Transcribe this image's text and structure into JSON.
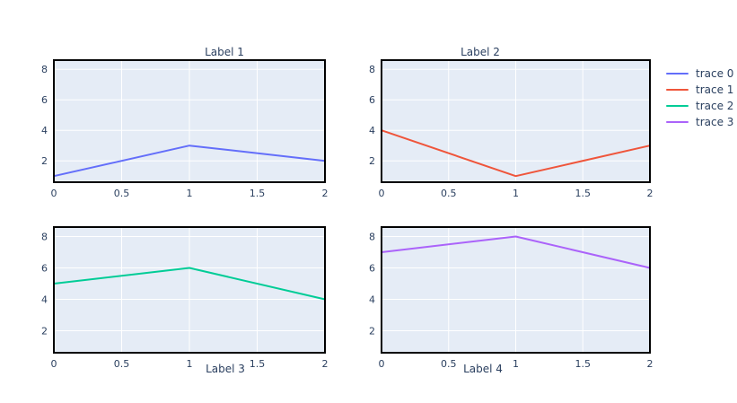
{
  "colors": {
    "background": "#ffffff",
    "plot_background": "#e5ecf6",
    "grid": "#ffffff",
    "axis_border": "#000000",
    "text": "#2a3f5f"
  },
  "legend": {
    "position": "right",
    "items": [
      {
        "label": "trace 0",
        "color": "#636efa"
      },
      {
        "label": "trace 1",
        "color": "#ef553b"
      },
      {
        "label": "trace 2",
        "color": "#00cc96"
      },
      {
        "label": "trace 3",
        "color": "#ab63fa"
      }
    ]
  },
  "chart_data": [
    {
      "type": "line",
      "name": "trace 0",
      "title": "Label 1",
      "title_position": "top",
      "color": "#636efa",
      "x": [
        0,
        1,
        2
      ],
      "y": [
        1,
        3,
        2
      ],
      "xlim": [
        0,
        2
      ],
      "ylim": [
        0.6,
        8.6
      ],
      "x_tick_values": [
        0,
        0.5,
        1,
        1.5,
        2
      ],
      "x_tick_labels": [
        "0",
        "0.5",
        "1",
        "1.5",
        "2"
      ],
      "y_tick_values": [
        2,
        4,
        6,
        8
      ],
      "y_tick_labels": [
        "2",
        "4",
        "6",
        "8"
      ],
      "grid": true
    },
    {
      "type": "line",
      "name": "trace 1",
      "title": "Label 2",
      "title_position": "top",
      "color": "#ef553b",
      "x": [
        0,
        1,
        2
      ],
      "y": [
        4,
        1,
        3
      ],
      "xlim": [
        0,
        2
      ],
      "ylim": [
        0.6,
        8.6
      ],
      "x_tick_values": [
        0,
        0.5,
        1,
        1.5,
        2
      ],
      "x_tick_labels": [
        "0",
        "0.5",
        "1",
        "1.5",
        "2"
      ],
      "y_tick_values": [
        2,
        4,
        6,
        8
      ],
      "y_tick_labels": [
        "2",
        "4",
        "6",
        "8"
      ],
      "grid": true
    },
    {
      "type": "line",
      "name": "trace 2",
      "title": "Label 3",
      "title_position": "bottom",
      "color": "#00cc96",
      "x": [
        0,
        1,
        2
      ],
      "y": [
        5,
        6,
        4
      ],
      "xlim": [
        0,
        2
      ],
      "ylim": [
        0.6,
        8.6
      ],
      "x_tick_values": [
        0,
        0.5,
        1,
        1.5,
        2
      ],
      "x_tick_labels": [
        "0",
        "0.5",
        "1",
        "1.5",
        "2"
      ],
      "y_tick_values": [
        2,
        4,
        6,
        8
      ],
      "y_tick_labels": [
        "2",
        "4",
        "6",
        "8"
      ],
      "grid": true
    },
    {
      "type": "line",
      "name": "trace 3",
      "title": "Label 4",
      "title_position": "bottom",
      "color": "#ab63fa",
      "x": [
        0,
        1,
        2
      ],
      "y": [
        7,
        8,
        6
      ],
      "xlim": [
        0,
        2
      ],
      "ylim": [
        0.6,
        8.6
      ],
      "x_tick_values": [
        0,
        0.5,
        1,
        1.5,
        2
      ],
      "x_tick_labels": [
        "0",
        "0.5",
        "1",
        "1.5",
        "2"
      ],
      "y_tick_values": [
        2,
        4,
        6,
        8
      ],
      "y_tick_labels": [
        "2",
        "4",
        "6",
        "8"
      ],
      "grid": true
    }
  ]
}
